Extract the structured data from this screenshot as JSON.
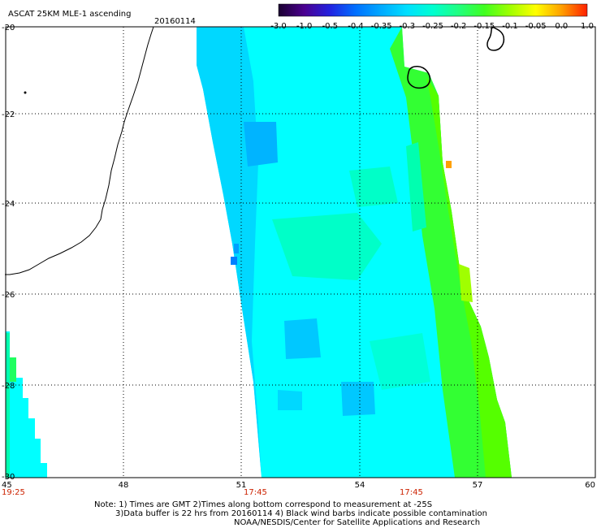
{
  "title": "ASCAT 25KM MLE-1 ascending",
  "date": "20160114",
  "colorbar": {
    "labels": [
      "-3.0",
      "-1.0",
      "-0.5",
      "-0.4",
      "-0.35",
      "-0.3",
      "-0.25",
      "-0.2",
      "-0.15",
      "-0.1",
      "-0.05",
      "0.0",
      "1.0"
    ],
    "colors": [
      "#1a0030",
      "#4b0090",
      "#2222e0",
      "#0070ff",
      "#00aaff",
      "#00e0ff",
      "#00ffd0",
      "#20ff80",
      "#40ff20",
      "#a0ff00",
      "#ffff00",
      "#ffa000",
      "#ff2000"
    ]
  },
  "lat_labels": [
    "-20",
    "-22",
    "-24",
    "-26",
    "-28",
    "-30"
  ],
  "lon_labels": [
    "45",
    "48",
    "51",
    "54",
    "57",
    "60"
  ],
  "time_labels": [
    "19:25",
    "17:45",
    "17:45"
  ],
  "notes": [
    "Note: 1) Times are GMT 2)Times along bottom correspond to measurement at -25S",
    "3)Data buffer is 22 hrs from 20160114 4) Black wind barbs indicate possible contamination",
    "NOAA/NESDIS/Center for Satellite Applications and Research"
  ],
  "palette": {
    "cyan": "#00ffff",
    "lightcyan": "#00e6ff",
    "skyblue": "#00c8ff",
    "blue": "#0096ff",
    "aquagreen": "#00ffb0",
    "green": "#20ff50",
    "lime": "#66ff00",
    "orange": "#ffa000"
  }
}
